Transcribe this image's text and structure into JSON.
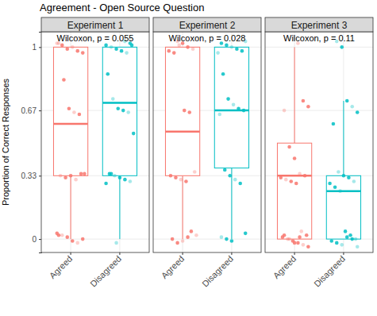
{
  "chart_data": {
    "type": "box",
    "title": "Agreement - Open Source Question",
    "y_label": "Proportion of Correct Responses",
    "categories": [
      "Agreed",
      "Disagreed"
    ],
    "colors": [
      "#F8766D",
      "#00BFC4"
    ],
    "ylim": [
      -0.07,
      1.08
    ],
    "yticks": [
      0,
      0.33,
      0.67,
      1
    ],
    "grid": true,
    "panels": [
      {
        "title": "Experiment 1",
        "annotation": "Wilcoxon, p = 0.055",
        "boxes": [
          {
            "min": 0,
            "q1": 0.33,
            "median": 0.6,
            "q3": 1,
            "max": 1,
            "points": [
              1.02,
              1.01,
              0.99,
              1.0,
              0.98,
              0.97,
              1.02,
              0.83,
              0.68,
              0.66,
              0.65,
              0.34,
              0.33,
              0.32,
              0.33,
              0.31,
              0.34,
              0.03,
              0.02,
              0.01,
              -0.01,
              -0.02,
              0.0,
              0.02
            ]
          },
          {
            "min": 0,
            "q1": 0.33,
            "median": 0.71,
            "q3": 1,
            "max": 1,
            "points": [
              1.03,
              1.02,
              1.01,
              1.0,
              0.99,
              0.98,
              0.97,
              1.01,
              0.86,
              0.73,
              0.68,
              0.67,
              0.66,
              0.55,
              0.34,
              0.33,
              0.32,
              0.31,
              0.3,
              0.29,
              0.34,
              -0.02
            ]
          }
        ]
      },
      {
        "title": "Experiment 2",
        "annotation": "Wilcoxon, p = 0.028",
        "boxes": [
          {
            "min": 0,
            "q1": 0.33,
            "median": 0.56,
            "q3": 1,
            "max": 1,
            "points": [
              1.03,
              1.02,
              1.0,
              0.99,
              0.98,
              0.97,
              1.01,
              0.67,
              0.66,
              0.35,
              0.33,
              0.32,
              0.31,
              0.3,
              0.04,
              0.02,
              0.0,
              -0.02,
              -0.01,
              0.01
            ]
          },
          {
            "min": 0,
            "q1": 0.37,
            "median": 0.67,
            "q3": 1,
            "max": 1,
            "points": [
              1.03,
              1.02,
              1.01,
              1.0,
              0.99,
              0.98,
              0.97,
              0.86,
              0.73,
              0.7,
              0.68,
              0.67,
              0.65,
              0.36,
              0.33,
              0.31,
              0.29,
              0.03,
              0.01,
              0.0,
              -0.01
            ]
          }
        ]
      },
      {
        "title": "Experiment 3",
        "annotation": "Wilcoxon, p = 0.11",
        "boxes": [
          {
            "min": 0,
            "q1": 0,
            "median": 0.33,
            "q3": 0.5,
            "max": 1,
            "points": [
              1.02,
              0.72,
              0.69,
              0.67,
              0.48,
              0.42,
              0.34,
              0.33,
              0.32,
              0.31,
              0.3,
              0.29,
              0.04,
              0.02,
              0.01,
              0.0,
              -0.01,
              -0.02,
              -0.03,
              -0.04,
              0.02,
              0.0,
              -0.02,
              0.01
            ]
          },
          {
            "min": 0,
            "q1": 0,
            "median": 0.25,
            "q3": 0.33,
            "max": 0.72,
            "points": [
              1.03,
              1.0,
              0.72,
              0.69,
              0.66,
              0.6,
              0.35,
              0.33,
              0.32,
              0.3,
              0.29,
              0.27,
              0.25,
              0.04,
              0.02,
              0.0,
              -0.01,
              -0.02,
              -0.03,
              0.01,
              0.0,
              -0.04
            ]
          }
        ]
      }
    ]
  }
}
